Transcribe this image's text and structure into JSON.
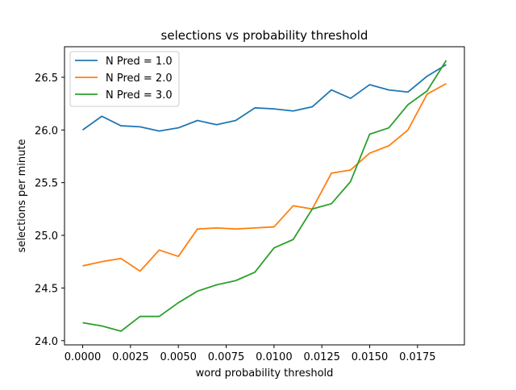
{
  "chart_data": {
    "type": "line",
    "title": "selections vs probability threshold",
    "xlabel": "word probability threshold",
    "ylabel": "selections per minute",
    "xlim": [
      -0.00095,
      0.01995
    ],
    "ylim": [
      23.96,
      26.79
    ],
    "x_ticks": [
      0.0,
      0.0025,
      0.005,
      0.0075,
      0.01,
      0.0125,
      0.015,
      0.0175
    ],
    "x_tick_labels": [
      "0.0000",
      "0.0025",
      "0.0050",
      "0.0075",
      "0.0100",
      "0.0125",
      "0.0150",
      "0.0175"
    ],
    "y_ticks": [
      24.0,
      24.5,
      25.0,
      25.5,
      26.0,
      26.5
    ],
    "y_tick_labels": [
      "24.0",
      "24.5",
      "25.0",
      "25.5",
      "26.0",
      "26.5"
    ],
    "grid": false,
    "legend_position": "top-left",
    "x": [
      0.0,
      0.001,
      0.002,
      0.003,
      0.004,
      0.005,
      0.006,
      0.007,
      0.008,
      0.009,
      0.01,
      0.011,
      0.012,
      0.013,
      0.014,
      0.015,
      0.016,
      0.017,
      0.018,
      0.019
    ],
    "series": [
      {
        "name": "N Pred = 1.0",
        "color": "#1f77b4",
        "values": [
          26.0,
          26.13,
          26.04,
          26.03,
          25.99,
          26.02,
          26.09,
          26.05,
          26.09,
          26.21,
          26.2,
          26.18,
          26.22,
          26.38,
          26.3,
          26.43,
          26.38,
          26.36,
          26.51,
          26.62
        ]
      },
      {
        "name": "N Pred = 2.0",
        "color": "#ff7f0e",
        "values": [
          24.71,
          24.75,
          24.78,
          24.66,
          24.86,
          24.8,
          25.06,
          25.07,
          25.06,
          25.07,
          25.08,
          25.28,
          25.25,
          25.59,
          25.62,
          25.78,
          25.85,
          26.0,
          26.34,
          26.44
        ]
      },
      {
        "name": "N Pred = 3.0",
        "color": "#2ca02c",
        "values": [
          24.17,
          24.14,
          24.09,
          24.23,
          24.23,
          24.36,
          24.47,
          24.53,
          24.57,
          24.65,
          24.88,
          24.96,
          25.25,
          25.3,
          25.51,
          25.96,
          26.02,
          26.24,
          26.37,
          26.66
        ]
      }
    ]
  }
}
